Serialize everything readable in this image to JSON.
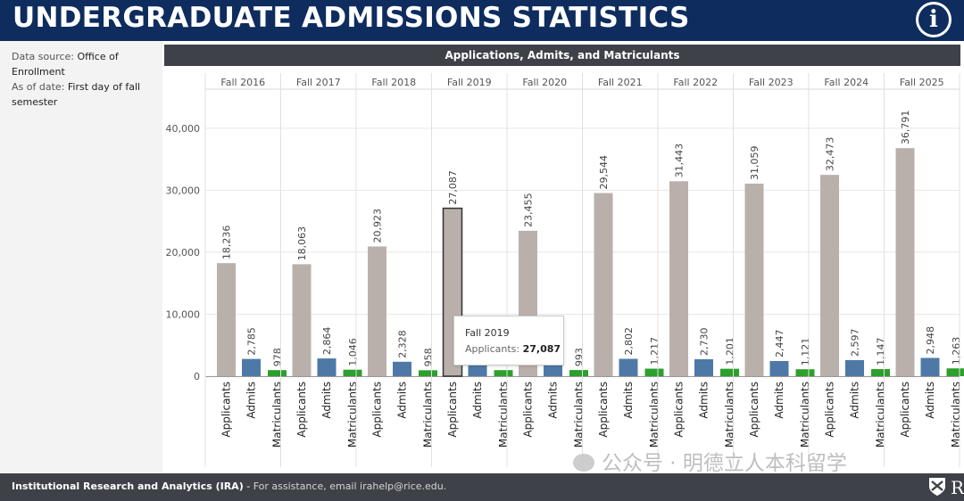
{
  "header": {
    "title": "UNDERGRADUATE ADMISSIONS STATISTICS",
    "info_icon": "info-icon",
    "info_glyph": "i"
  },
  "sidebar": {
    "source_label": "Data source:",
    "source_value_1": "Office of",
    "source_value_2": "Enrollment",
    "asof_label": "As of date:",
    "asof_value_1": "First day of fall",
    "asof_value_2": "semester"
  },
  "footer": {
    "org": "Institutional Research and Analytics (IRA)",
    "sep": " - ",
    "assist": "For assistance, email irahelp@rice.edu.",
    "logo_text": "RICE"
  },
  "watermark": "公众号 · 明德立人本科留学",
  "tooltip": {
    "year": "Fall 2019",
    "label": "Applicants:",
    "value": "27,087"
  },
  "colors": {
    "header_bg": "#0e2c5e",
    "banner_bg": "#3f4148",
    "applicants": "#bab0ab",
    "admits": "#4e79a7",
    "matriculants": "#2ca02c",
    "highlight_border": "#333333"
  },
  "chart_data": {
    "type": "bar",
    "title": "Applications, Admits, and Matriculants",
    "categories": [
      "Fall 2016",
      "Fall 2017",
      "Fall 2018",
      "Fall 2019",
      "Fall 2020",
      "Fall 2021",
      "Fall 2022",
      "Fall 2023",
      "Fall 2024",
      "Fall 2025"
    ],
    "measures": [
      "Applicants",
      "Admits",
      "Matriculants"
    ],
    "series": [
      {
        "name": "Applicants",
        "values": [
          18236,
          18063,
          20923,
          27087,
          23455,
          29544,
          31443,
          31059,
          32473,
          36791
        ],
        "labels": [
          "18,236",
          "18,063",
          "20,923",
          "27,087",
          "23,455",
          "29,544",
          "31,443",
          "31,059",
          "32,473",
          "36,791"
        ]
      },
      {
        "name": "Admits",
        "values": [
          2785,
          2864,
          2328,
          2400,
          2350,
          2802,
          2730,
          2447,
          2597,
          2948
        ],
        "labels": [
          "2,785",
          "2,864",
          "2,328",
          "",
          "",
          "2,802",
          "2,730",
          "2,447",
          "2,597",
          "2,948"
        ]
      },
      {
        "name": "Matriculants",
        "values": [
          978,
          1046,
          958,
          980,
          993,
          1217,
          1201,
          1121,
          1147,
          1263
        ],
        "labels": [
          "978",
          "1,046",
          "958",
          "",
          "993",
          "1,217",
          "1,201",
          "1,121",
          "1,147",
          "1,263"
        ]
      }
    ],
    "ylim": [
      0,
      44000
    ],
    "yticks": [
      0,
      10000,
      20000,
      30000,
      40000
    ],
    "ytick_labels": [
      "0",
      "10,000",
      "20,000",
      "30,000",
      "40,000"
    ],
    "highlighted": {
      "category": "Fall 2019",
      "series": "Applicants"
    },
    "grid": true
  }
}
